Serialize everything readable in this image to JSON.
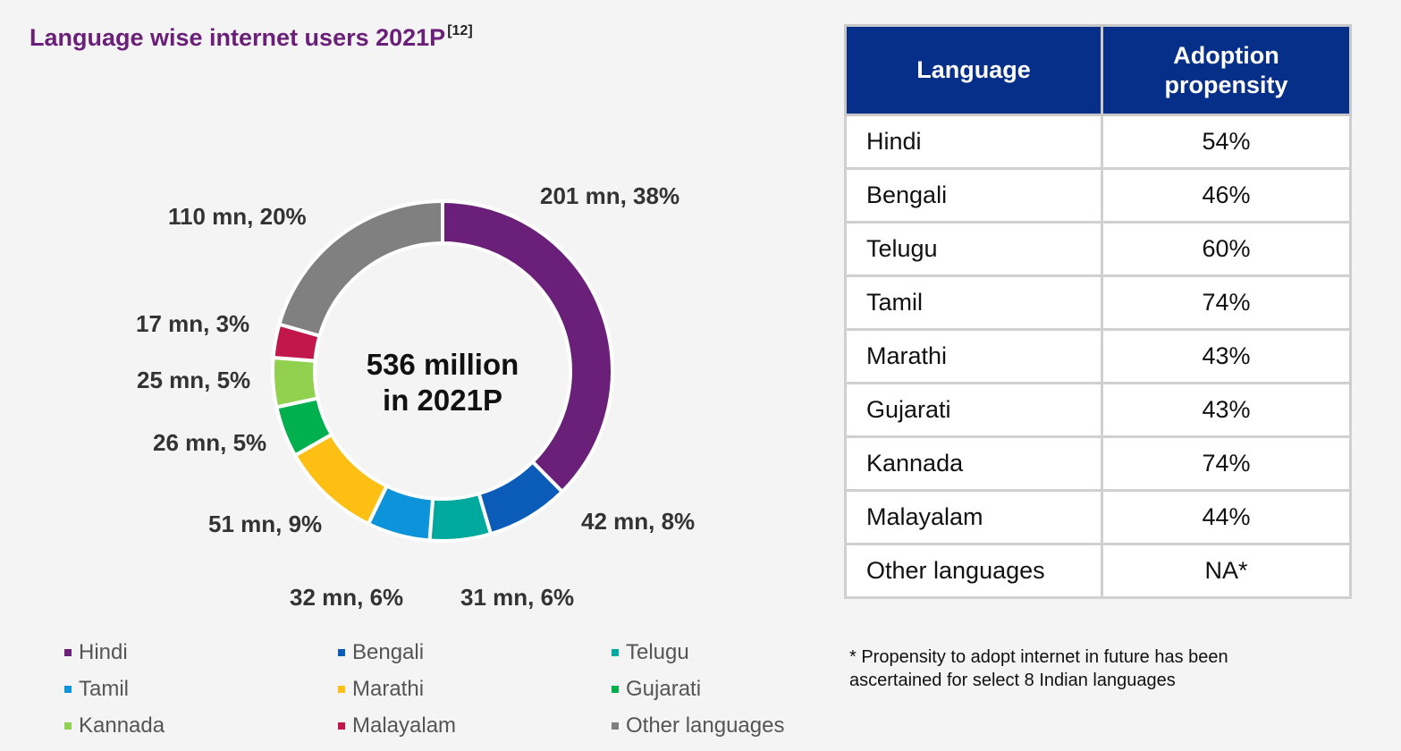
{
  "chart_data": {
    "type": "pie",
    "title": "Language wise internet users 2021P",
    "title_ref": "[12]",
    "center_text": [
      "536 million",
      "in 2021P"
    ],
    "unit": "mn",
    "categories": [
      "Hindi",
      "Bengali",
      "Telugu",
      "Tamil",
      "Marathi",
      "Gujarati",
      "Kannada",
      "Malayalam",
      "Other languages"
    ],
    "values": [
      201,
      42,
      31,
      32,
      51,
      26,
      25,
      17,
      110
    ],
    "percents": [
      38,
      8,
      6,
      6,
      9,
      5,
      5,
      3,
      20
    ],
    "labels": [
      "201 mn, 38%",
      "42 mn, 8%",
      "31 mn, 6%",
      "32 mn, 6%",
      "51 mn, 9%",
      "26 mn, 5%",
      "25 mn, 5%",
      "17 mn, 3%",
      "110 mn, 20%"
    ],
    "colors": [
      "#6a1f78",
      "#0a5cb8",
      "#00a99d",
      "#0d93d9",
      "#fdbf14",
      "#00b04f",
      "#92d050",
      "#c2174b",
      "#808080"
    ],
    "legend_position": "bottom"
  },
  "table": {
    "headers": [
      "Language",
      "Adoption propensity"
    ],
    "rows": [
      {
        "language": "Hindi",
        "propensity": "54%"
      },
      {
        "language": "Bengali",
        "propensity": "46%"
      },
      {
        "language": "Telugu",
        "propensity": "60%"
      },
      {
        "language": "Tamil",
        "propensity": "74%"
      },
      {
        "language": "Marathi",
        "propensity": "43%"
      },
      {
        "language": "Gujarati",
        "propensity": "43%"
      },
      {
        "language": "Kannada",
        "propensity": "74%"
      },
      {
        "language": "Malayalam",
        "propensity": "44%"
      },
      {
        "language": "Other languages",
        "propensity": "NA*"
      }
    ]
  },
  "footnote": "* Propensity to adopt internet in future has been ascertained for select 8 Indian languages",
  "colors": {
    "title": "#6a1f78",
    "table_header_bg": "#062f8a"
  }
}
